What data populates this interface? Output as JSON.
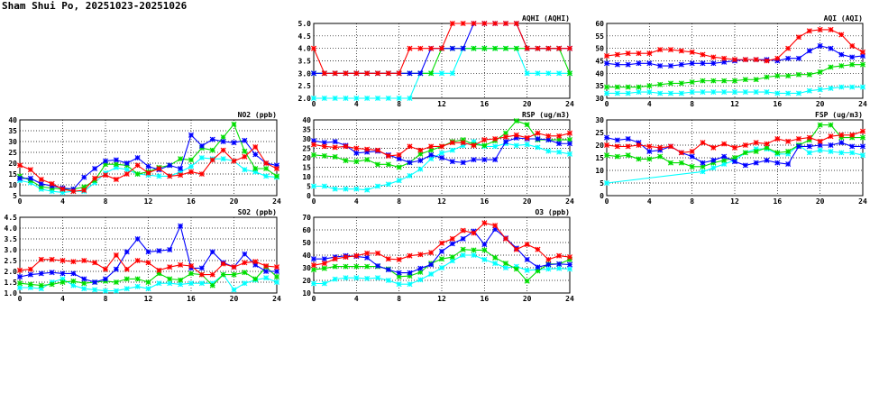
{
  "title": "Sham Shui Po, 20251023-20251026",
  "chart_data": [
    {
      "id": "no2",
      "type": "line",
      "title": "NO2 (ppb)",
      "xlim": [
        0,
        24
      ],
      "ylim": [
        5,
        40
      ],
      "xticks": [
        "0",
        "4",
        "8",
        "12",
        "16",
        "20",
        "24"
      ],
      "yticks": [
        "5",
        "10",
        "15",
        "20",
        "25",
        "30",
        "35",
        "40"
      ],
      "grid": true,
      "series": [
        {
          "color": "#00ffff",
          "values": [
            12,
            11,
            8,
            7,
            6.5,
            7,
            7,
            11,
            15.5,
            18,
            17,
            15,
            14.5,
            14,
            14,
            16,
            18.5,
            22.5,
            22,
            22,
            21,
            17,
            16,
            14,
            13.5
          ]
        },
        {
          "color": "#00dd00",
          "values": [
            14,
            12,
            9,
            8.5,
            8,
            8,
            9,
            12,
            19.5,
            19.5,
            19,
            15,
            16,
            18,
            19,
            22,
            21.5,
            27,
            26,
            32,
            38,
            25.5,
            17.5,
            17.5,
            14
          ]
        },
        {
          "color": "#0000ff",
          "values": [
            13,
            13,
            10.5,
            9.5,
            8.5,
            8,
            13.5,
            17.5,
            21,
            21.5,
            20,
            22.5,
            18.5,
            17,
            19,
            17.5,
            33,
            28,
            31,
            30,
            29.5,
            30.5,
            24,
            20,
            19
          ]
        },
        {
          "color": "#ff0000",
          "values": [
            19,
            17,
            12.5,
            10.5,
            8,
            7,
            7.5,
            13,
            14.5,
            12.5,
            15,
            19,
            15.5,
            17.5,
            14,
            14.5,
            16,
            15,
            21.5,
            26,
            21,
            23,
            27.5,
            20,
            17.5
          ]
        }
      ]
    },
    {
      "id": "aqhi",
      "type": "line",
      "title": "AQHI (AQHI)",
      "xlim": [
        0,
        24
      ],
      "ylim": [
        2,
        5
      ],
      "xticks": [
        "0",
        "4",
        "8",
        "12",
        "16",
        "20",
        "24"
      ],
      "yticks": [
        "2.0",
        "2.5",
        "3.0",
        "3.5",
        "4.0",
        "4.5",
        "5.0"
      ],
      "grid": true,
      "series": [
        {
          "color": "#00ffff",
          "values": [
            2,
            2,
            2,
            2,
            2,
            2,
            2,
            2,
            2,
            2,
            3,
            3,
            3,
            3,
            4,
            4,
            4,
            4,
            4,
            4,
            3,
            3,
            3,
            3,
            3
          ]
        },
        {
          "color": "#00dd00",
          "values": [
            3,
            3,
            3,
            3,
            3,
            3,
            3,
            3,
            3,
            3,
            3,
            3,
            4,
            4,
            4,
            4,
            4,
            4,
            4,
            4,
            4,
            4,
            4,
            4,
            3
          ]
        },
        {
          "color": "#0000ff",
          "values": [
            3,
            3,
            3,
            3,
            3,
            3,
            3,
            3,
            3,
            3,
            3,
            4,
            4,
            4,
            4,
            5,
            5,
            5,
            5,
            5,
            4,
            4,
            4,
            4,
            4
          ]
        },
        {
          "color": "#ff0000",
          "values": [
            4,
            3,
            3,
            3,
            3,
            3,
            3,
            3,
            3,
            4,
            4,
            4,
            4,
            5,
            5,
            5,
            5,
            5,
            5,
            5,
            4,
            4,
            4,
            4,
            4
          ]
        }
      ]
    },
    {
      "id": "aqi",
      "type": "line",
      "title": "AQI (AQI)",
      "xlim": [
        0,
        24
      ],
      "ylim": [
        30,
        60
      ],
      "xticks": [
        "0",
        "4",
        "8",
        "12",
        "16",
        "20",
        "24"
      ],
      "yticks": [
        "30",
        "35",
        "40",
        "45",
        "50",
        "55",
        "60"
      ],
      "grid": true,
      "series": [
        {
          "color": "#00ffff",
          "values": [
            32,
            32,
            32,
            32.5,
            32.5,
            32,
            32,
            32,
            32.5,
            32.5,
            32.5,
            32.5,
            32.5,
            32.5,
            32.5,
            32.5,
            32,
            32,
            32,
            33,
            33.5,
            34,
            34.5,
            34.5,
            34.5
          ]
        },
        {
          "color": "#00dd00",
          "values": [
            34.5,
            34.5,
            34.5,
            34.5,
            35,
            35.5,
            36,
            36,
            36.5,
            37,
            37,
            37,
            37,
            37.5,
            37.5,
            38.5,
            39,
            39,
            39.5,
            39.5,
            40.5,
            42.5,
            43,
            43.5,
            43.5
          ]
        },
        {
          "color": "#0000ff",
          "values": [
            44,
            43.5,
            43.5,
            44,
            44,
            43,
            43,
            43.5,
            44,
            44,
            44,
            44.5,
            45,
            45.5,
            45.5,
            45.5,
            45,
            46,
            46,
            49,
            51,
            50,
            47.5,
            46.5,
            47
          ]
        },
        {
          "color": "#ff0000",
          "values": [
            47,
            47.5,
            48,
            48,
            48,
            49.5,
            49.5,
            49,
            48.5,
            47.5,
            46.5,
            46,
            45.5,
            45.5,
            45.5,
            45,
            46,
            50,
            54.5,
            57,
            57.5,
            57.5,
            55.5,
            51,
            48.5
          ]
        }
      ]
    },
    {
      "id": "rsp",
      "type": "line",
      "title": "RSP (ug/m3)",
      "xlim": [
        0,
        24
      ],
      "ylim": [
        0,
        40
      ],
      "xticks": [
        "0",
        "4",
        "8",
        "12",
        "16",
        "20",
        "24"
      ],
      "yticks": [
        "0",
        "5",
        "10",
        "15",
        "20",
        "25",
        "30",
        "35",
        "40"
      ],
      "grid": true,
      "series": [
        {
          "color": "#00ffff",
          "values": [
            5,
            5,
            3.5,
            3.5,
            3.5,
            3,
            5,
            6,
            8,
            10.5,
            14,
            19.5,
            22.5,
            24,
            26.5,
            28.5,
            26,
            26,
            27.5,
            26.5,
            27,
            25.5,
            23.5,
            23,
            22
          ]
        },
        {
          "color": "#00dd00",
          "values": [
            21.5,
            21,
            20.5,
            18.5,
            18,
            19,
            16.5,
            16.5,
            15,
            17.5,
            22,
            24,
            26,
            28.5,
            29.5,
            27,
            26.5,
            29,
            33,
            39.5,
            37.5,
            29.5,
            29.5,
            29.5,
            29.5
          ]
        },
        {
          "color": "#0000ff",
          "values": [
            29,
            28,
            28.5,
            26.5,
            22.5,
            23,
            23.5,
            21.5,
            19.5,
            17.5,
            18.5,
            21.5,
            20,
            18,
            17.5,
            19,
            19,
            19,
            28.5,
            30.5,
            30,
            30,
            29.5,
            27.5,
            27.5
          ]
        },
        {
          "color": "#ff0000",
          "values": [
            27,
            26,
            25.5,
            26,
            25,
            24.5,
            24,
            21,
            21.5,
            26,
            24,
            26,
            26,
            28,
            28,
            26.5,
            29.5,
            30,
            31,
            32,
            30.5,
            33,
            31.5,
            31.5,
            33
          ]
        }
      ]
    },
    {
      "id": "fsp",
      "type": "line",
      "title": "FSP (ug/m3)",
      "xlim": [
        0,
        24
      ],
      "ylim": [
        0,
        30
      ],
      "xticks": [
        "0",
        "4",
        "8",
        "12",
        "16",
        "20",
        "24"
      ],
      "yticks": [
        "0",
        "5",
        "10",
        "15",
        "20",
        "25",
        "30"
      ],
      "grid": true,
      "series": [
        {
          "color": "#00ffff",
          "values": [
            5,
            null,
            null,
            null,
            null,
            null,
            null,
            null,
            null,
            9.5,
            11,
            12.5,
            14,
            17,
            18.5,
            18.5,
            16.5,
            16.5,
            20,
            17,
            18,
            17.5,
            17,
            17,
            16
          ]
        },
        {
          "color": "#00dd00",
          "values": [
            16,
            15.5,
            16,
            14.5,
            14.5,
            15.5,
            13,
            13,
            11.5,
            11.5,
            13,
            14,
            15,
            17,
            17.5,
            19,
            17,
            17.5,
            20,
            22,
            28,
            28,
            23,
            23,
            23
          ]
        },
        {
          "color": "#0000ff",
          "values": [
            23,
            22,
            22.5,
            21,
            17.5,
            18,
            19.5,
            17,
            15.5,
            13,
            14,
            15.5,
            13.5,
            12,
            13,
            14,
            13,
            12.5,
            19.5,
            19.5,
            20,
            20,
            21,
            19.5,
            19.5
          ]
        },
        {
          "color": "#ff0000",
          "values": [
            20,
            19.5,
            19.5,
            20,
            19.5,
            19,
            19.5,
            17,
            17.5,
            21,
            19,
            20.5,
            19,
            20,
            21,
            20.5,
            22.5,
            21.5,
            22.5,
            23,
            21.5,
            23.5,
            24,
            24,
            25.5
          ]
        }
      ]
    },
    {
      "id": "so2",
      "type": "line",
      "title": "SO2 (ppb)",
      "xlim": [
        0,
        24
      ],
      "ylim": [
        1,
        4.5
      ],
      "xticks": [
        "0",
        "4",
        "8",
        "12",
        "16",
        "20",
        "24"
      ],
      "yticks": [
        "1.0",
        "1.5",
        "2.0",
        "2.5",
        "3.0",
        "3.5",
        "4.0",
        "4.5"
      ],
      "grid": true,
      "series": [
        {
          "color": "#00ffff",
          "values": [
            1.25,
            1.25,
            1.2,
            1.5,
            1.65,
            1.35,
            1.2,
            1.15,
            1.1,
            1.1,
            1.2,
            1.3,
            1.2,
            1.45,
            1.45,
            1.4,
            1.45,
            1.45,
            1.45,
            1.85,
            1.15,
            1.45,
            1.6,
            1.7,
            1.5
          ]
        },
        {
          "color": "#00dd00",
          "values": [
            1.45,
            1.4,
            1.35,
            1.4,
            1.5,
            1.55,
            1.45,
            1.5,
            1.55,
            1.5,
            1.65,
            1.65,
            1.5,
            1.9,
            1.65,
            1.6,
            1.9,
            1.85,
            1.35,
            1.85,
            1.85,
            1.95,
            1.65,
            2.2,
            1.75
          ]
        },
        {
          "color": "#0000ff",
          "values": [
            1.75,
            1.85,
            1.9,
            1.95,
            1.9,
            1.9,
            1.65,
            1.5,
            1.65,
            2.1,
            2.9,
            3.5,
            2.9,
            2.95,
            3.0,
            4.1,
            2.15,
            2.15,
            2.9,
            2.4,
            2.2,
            2.8,
            2.3,
            2.0,
            2.0
          ]
        },
        {
          "color": "#ff0000",
          "values": [
            2.05,
            2.1,
            2.55,
            2.55,
            2.5,
            2.45,
            2.5,
            2.4,
            2.1,
            2.75,
            2.1,
            2.5,
            2.4,
            2.05,
            2.2,
            2.3,
            2.25,
            1.85,
            1.85,
            2.35,
            2.2,
            2.4,
            2.45,
            2.25,
            2.2
          ]
        }
      ]
    },
    {
      "id": "o3",
      "type": "line",
      "title": "O3 (ppb)",
      "xlim": [
        0,
        24
      ],
      "ylim": [
        10,
        70
      ],
      "xticks": [
        "0",
        "4",
        "8",
        "12",
        "16",
        "20",
        "24"
      ],
      "yticks": [
        "10",
        "20",
        "30",
        "40",
        "50",
        "60",
        "70"
      ],
      "grid": true,
      "series": [
        {
          "color": "#00ffff",
          "values": [
            17.5,
            17.5,
            21,
            22,
            22,
            21.5,
            22,
            20,
            17,
            17,
            20.5,
            25,
            30,
            35.5,
            40,
            40,
            36.5,
            33.5,
            30,
            31,
            28,
            28.5,
            29,
            29.5,
            29
          ]
        },
        {
          "color": "#00dd00",
          "values": [
            28.5,
            29.5,
            31,
            31,
            31,
            31,
            31,
            29,
            23,
            23.5,
            26.5,
            33.5,
            37,
            38.5,
            44.5,
            44,
            44,
            38,
            33.5,
            29,
            19.5,
            27.5,
            33,
            33,
            36.5
          ]
        },
        {
          "color": "#0000ff",
          "values": [
            37,
            37,
            38.5,
            39.5,
            39,
            38,
            31.5,
            28.5,
            26,
            26,
            29.5,
            32.5,
            43,
            49,
            53,
            59,
            48.5,
            60.5,
            53.5,
            45.5,
            36.5,
            30.5,
            32.5,
            33,
            32.5
          ]
        },
        {
          "color": "#ff0000",
          "values": [
            32,
            33.5,
            37,
            38.5,
            39.5,
            41.5,
            41.5,
            37,
            36.5,
            39.5,
            40.5,
            42,
            49.5,
            53,
            59.5,
            57.5,
            65.5,
            63.5,
            53,
            44.5,
            48.5,
            44.5,
            36.5,
            39.5,
            38.5
          ]
        }
      ]
    }
  ]
}
